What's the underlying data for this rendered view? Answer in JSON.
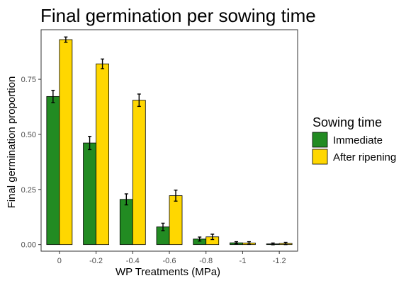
{
  "chart_data": {
    "type": "bar",
    "title": "Final germination per sowing time",
    "xlabel": "WP Treatments (MPa)",
    "ylabel": "Final germination proportion",
    "categories": [
      "0",
      "-0.2",
      "-0.4",
      "-0.6",
      "-0.8",
      "-1",
      "-1.2"
    ],
    "ylim": [
      -0.03,
      0.975
    ],
    "yticks": [
      0,
      0.25,
      0.5,
      0.75
    ],
    "ytick_labels": [
      "0.00",
      "0.25",
      "0.50",
      "0.75"
    ],
    "grid": false,
    "legend": {
      "title": "Sowing time",
      "position": "right"
    },
    "series": [
      {
        "name": "Immediate",
        "color": "#228B22",
        "values": [
          0.672,
          0.461,
          0.205,
          0.08,
          0.025,
          0.008,
          0.003
        ],
        "errors": [
          0.028,
          0.03,
          0.025,
          0.017,
          0.009,
          0.005,
          0.004
        ]
      },
      {
        "name": "After ripening",
        "color": "#FFD700",
        "values": [
          0.93,
          0.82,
          0.655,
          0.222,
          0.035,
          0.007,
          0.005
        ],
        "errors": [
          0.012,
          0.022,
          0.028,
          0.025,
          0.012,
          0.006,
          0.005
        ]
      }
    ]
  }
}
